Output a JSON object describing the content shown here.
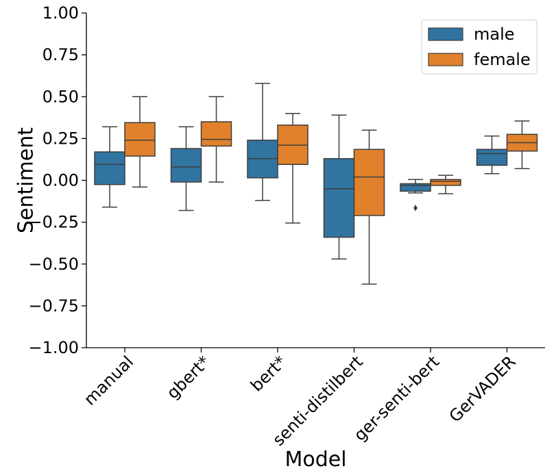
{
  "chart_data": {
    "type": "boxplot",
    "xlabel": "Model",
    "ylabel": "Sentiment",
    "ylim": [
      -1.0,
      1.0
    ],
    "yticks": [
      "1.00",
      "0.75",
      "0.50",
      "0.25",
      "0.00",
      "−0.25",
      "−0.50",
      "−0.75",
      "−1.00"
    ],
    "ytick_values": [
      1.0,
      0.75,
      0.5,
      0.25,
      0.0,
      -0.25,
      -0.5,
      -0.75,
      -1.0
    ],
    "categories": [
      "manual",
      "gbert*",
      "bert*",
      "senti-distilbert",
      "ger-senti-bert",
      "GerVADER"
    ],
    "grid": false,
    "legend_position": "top-right",
    "series": [
      {
        "name": "male",
        "color": "#3274a1",
        "boxes": [
          {
            "whislo": -0.16,
            "q1": -0.025,
            "med": 0.095,
            "q3": 0.17,
            "whishi": 0.32,
            "fliers": []
          },
          {
            "whislo": -0.18,
            "q1": -0.01,
            "med": 0.08,
            "q3": 0.19,
            "whishi": 0.32,
            "fliers": []
          },
          {
            "whislo": -0.12,
            "q1": 0.015,
            "med": 0.13,
            "q3": 0.24,
            "whishi": 0.58,
            "fliers": []
          },
          {
            "whislo": -0.47,
            "q1": -0.34,
            "med": -0.05,
            "q3": 0.13,
            "whishi": 0.39,
            "fliers": []
          },
          {
            "whislo": -0.075,
            "q1": -0.065,
            "med": -0.03,
            "q3": -0.02,
            "whishi": 0.005,
            "fliers": [
              -0.165
            ]
          },
          {
            "whislo": 0.04,
            "q1": 0.09,
            "med": 0.16,
            "q3": 0.185,
            "whishi": 0.265,
            "fliers": []
          }
        ]
      },
      {
        "name": "female",
        "color": "#e1812c",
        "boxes": [
          {
            "whislo": -0.04,
            "q1": 0.145,
            "med": 0.24,
            "q3": 0.345,
            "whishi": 0.5,
            "fliers": []
          },
          {
            "whislo": -0.01,
            "q1": 0.205,
            "med": 0.245,
            "q3": 0.35,
            "whishi": 0.5,
            "fliers": []
          },
          {
            "whislo": -0.255,
            "q1": 0.095,
            "med": 0.21,
            "q3": 0.33,
            "whishi": 0.4,
            "fliers": []
          },
          {
            "whislo": -0.62,
            "q1": -0.21,
            "med": 0.02,
            "q3": 0.185,
            "whishi": 0.3,
            "fliers": []
          },
          {
            "whislo": -0.08,
            "q1": -0.03,
            "med": -0.005,
            "q3": 0.005,
            "whishi": 0.03,
            "fliers": []
          },
          {
            "whislo": 0.07,
            "q1": 0.175,
            "med": 0.225,
            "q3": 0.275,
            "whishi": 0.355,
            "fliers": []
          }
        ]
      }
    ]
  }
}
